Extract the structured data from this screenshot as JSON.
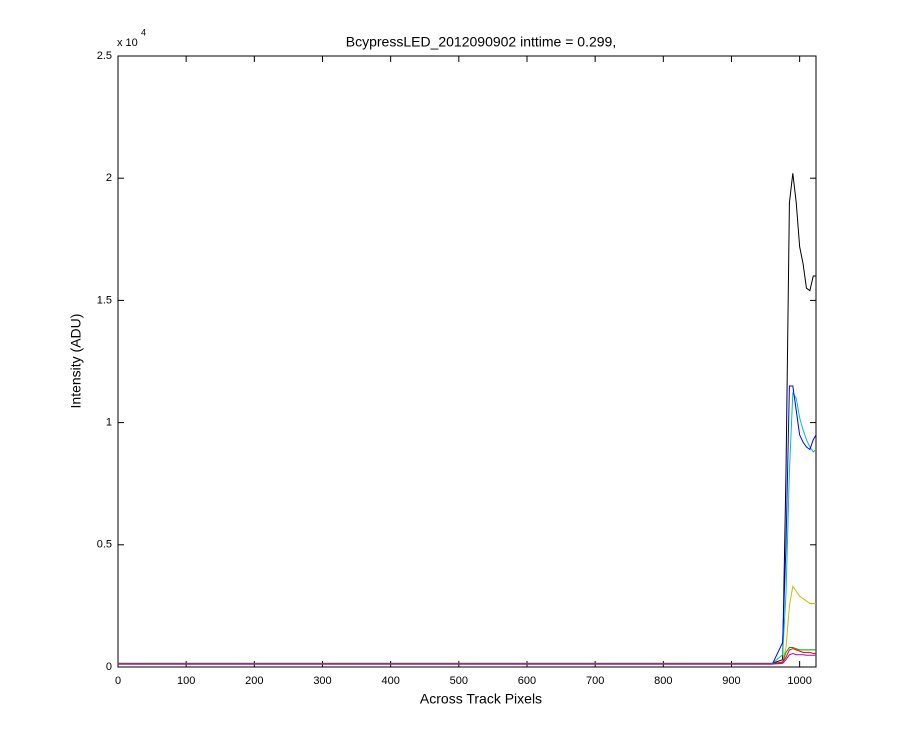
{
  "chart_data": {
    "type": "line",
    "title": "BcypressLED_2012090902 inttime = 0.299,",
    "xlabel": "Across Track Pixels",
    "ylabel": "Intensity (ADU)",
    "y_multiplier": "x 10",
    "y_multiplier_exponent": "4",
    "x": [
      0,
      200,
      400,
      600,
      800,
      960,
      975,
      980,
      985,
      990,
      995,
      1000,
      1005,
      1010,
      1015,
      1020,
      1024
    ],
    "series": [
      {
        "color": "#000000",
        "values": [
          0.015,
          0.015,
          0.015,
          0.015,
          0.015,
          0.015,
          0.03,
          0.8,
          1.9,
          2.02,
          1.9,
          1.72,
          1.65,
          1.55,
          1.54,
          1.6,
          1.6
        ]
      },
      {
        "color": "#00bfbf",
        "values": [
          0.015,
          0.015,
          0.015,
          0.015,
          0.015,
          0.015,
          0.05,
          0.3,
          0.8,
          1.12,
          1.1,
          1.02,
          0.97,
          0.93,
          0.9,
          0.88,
          0.89
        ]
      },
      {
        "color": "#0000ff",
        "values": [
          0.012,
          0.012,
          0.012,
          0.012,
          0.012,
          0.012,
          0.1,
          0.5,
          1.15,
          1.15,
          1.05,
          0.95,
          0.92,
          0.9,
          0.89,
          0.93,
          0.95
        ]
      },
      {
        "color": "#bfbf00",
        "values": [
          0.013,
          0.013,
          0.013,
          0.013,
          0.013,
          0.013,
          0.02,
          0.08,
          0.25,
          0.33,
          0.31,
          0.29,
          0.28,
          0.27,
          0.26,
          0.26,
          0.26
        ]
      },
      {
        "color": "#00a000",
        "values": [
          0.014,
          0.014,
          0.014,
          0.014,
          0.014,
          0.014,
          0.02,
          0.06,
          0.08,
          0.08,
          0.075,
          0.07,
          0.07,
          0.07,
          0.07,
          0.07,
          0.07
        ]
      },
      {
        "color": "#ff0000",
        "values": [
          0.013,
          0.013,
          0.013,
          0.013,
          0.013,
          0.013,
          0.02,
          0.04,
          0.07,
          0.075,
          0.07,
          0.065,
          0.06,
          0.06,
          0.06,
          0.055,
          0.055
        ]
      },
      {
        "color": "#bf00bf",
        "values": [
          0.012,
          0.012,
          0.012,
          0.012,
          0.012,
          0.012,
          0.015,
          0.03,
          0.05,
          0.055,
          0.05,
          0.05,
          0.05,
          0.048,
          0.048,
          0.048,
          0.048
        ]
      }
    ],
    "xlim": [
      0,
      1024
    ],
    "ylim": [
      0,
      2.5
    ],
    "xticks": [
      0,
      100,
      200,
      300,
      400,
      500,
      600,
      700,
      800,
      900,
      1000
    ],
    "yticks": [
      0,
      0.5,
      1,
      1.5,
      2,
      2.5
    ],
    "grid": false
  }
}
